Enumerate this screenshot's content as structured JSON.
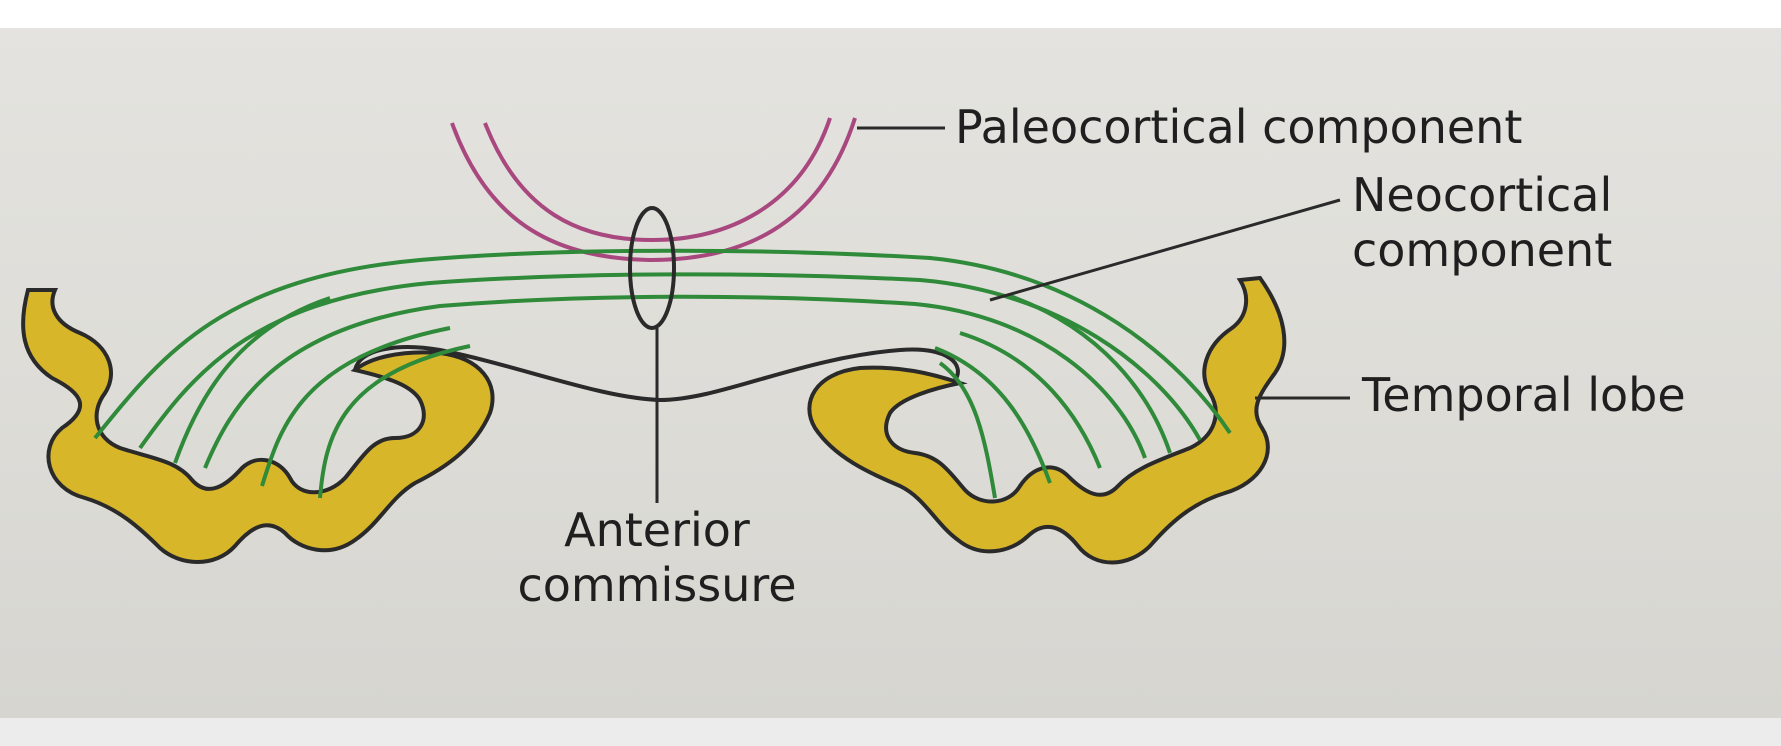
{
  "labels": {
    "paleocortical": "Paleocortical component",
    "neocortical_line1": "Neocortical",
    "neocortical_line2": "component",
    "temporal_lobe": "Temporal lobe",
    "anterior_line1": "Anterior",
    "anterior_line2": "commissure"
  },
  "colors": {
    "paleocortical_fibers": "#a8487f",
    "neocortical_fibers": "#2f8a3a",
    "temporal_lobe_fill": "#d8b62a",
    "outline": "#2a2a2a",
    "paper": "#e0dfda"
  }
}
